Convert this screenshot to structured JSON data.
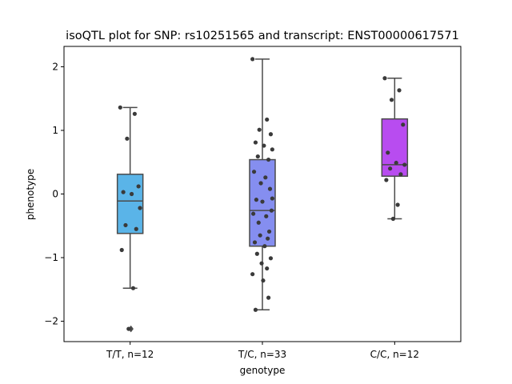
{
  "chart_data": {
    "type": "box",
    "title": "isoQTL plot for SNP: rs10251565 and transcript: ENST00000617571",
    "xlabel": "genotype",
    "ylabel": "phenotype",
    "categories": [
      "T/T, n=12",
      "T/C, n=33",
      "C/C, n=12"
    ],
    "ylim": [
      -2.32,
      2.32
    ],
    "yticks": [
      -2,
      -1,
      0,
      1,
      2
    ],
    "ytick_labels": [
      "−2",
      "−1",
      "0",
      "1",
      "2"
    ],
    "boxes": [
      {
        "category": "T/T, n=12",
        "color": "#5ab4e8",
        "whisker_low": -1.48,
        "q1": -0.62,
        "median": -0.11,
        "q3": 0.31,
        "whisker_high": 1.36,
        "outliers": [
          -2.12
        ],
        "points": [
          1.36,
          1.26,
          0.87,
          0.12,
          0.03,
          0.0,
          -0.22,
          -0.49,
          -0.55,
          -0.88,
          -1.48,
          -2.12
        ]
      },
      {
        "category": "T/C, n=33",
        "color": "#858ef0",
        "whisker_low": -1.82,
        "q1": -0.82,
        "median": -0.26,
        "q3": 0.54,
        "whisker_high": 2.12,
        "outliers": [],
        "points": [
          2.12,
          1.17,
          1.01,
          0.94,
          0.81,
          0.76,
          0.7,
          0.59,
          0.54,
          0.35,
          0.26,
          0.17,
          0.08,
          -0.09,
          -0.12,
          -0.26,
          -0.31,
          -0.35,
          -0.45,
          -0.59,
          -0.65,
          -0.7,
          -0.76,
          -0.82,
          -0.94,
          -1.01,
          -1.09,
          -1.17,
          -1.26,
          -1.36,
          -1.63,
          -1.82,
          -0.07
        ]
      },
      {
        "category": "C/C, n=12",
        "color": "#b84cf0",
        "whisker_low": -0.39,
        "q1": 0.28,
        "median": 0.46,
        "q3": 1.18,
        "whisker_high": 1.82,
        "outliers": [],
        "points": [
          1.82,
          1.63,
          1.48,
          1.09,
          0.65,
          0.49,
          0.46,
          0.4,
          0.31,
          0.22,
          -0.17,
          -0.39
        ]
      }
    ]
  }
}
